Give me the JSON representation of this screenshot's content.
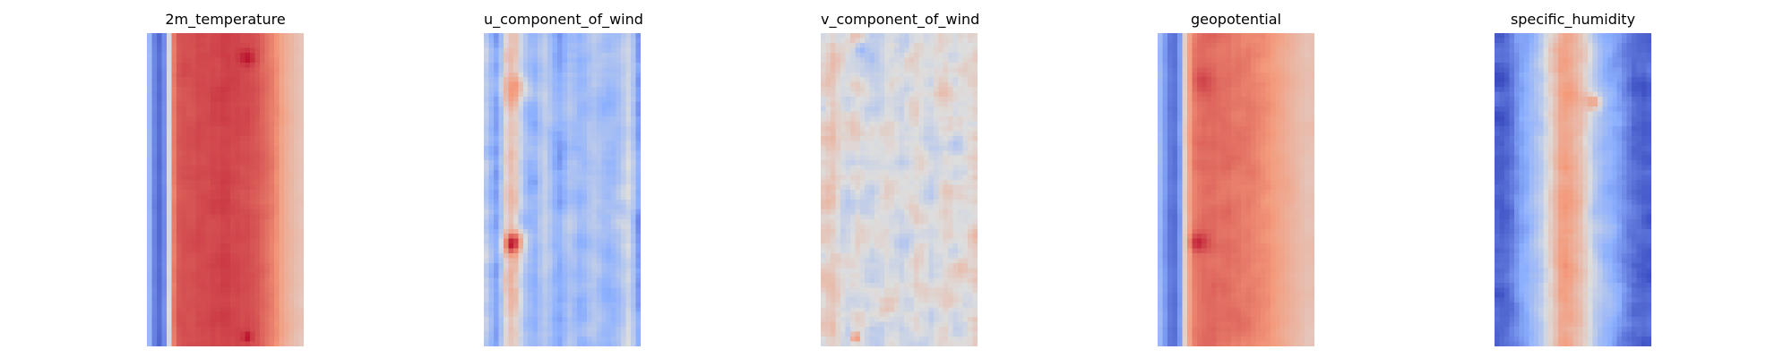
{
  "chart_data": [
    {
      "type": "heatmap",
      "title": "2m_temperature",
      "colormap": "coolwarm",
      "axis": "off",
      "grid": false,
      "pattern": {
        "base_columns": [
          0.3,
          0.14,
          0.08,
          0.16,
          0.48,
          0.8,
          0.86,
          0.87,
          0.87,
          0.87,
          0.88,
          0.88,
          0.88,
          0.89,
          0.89,
          0.9,
          0.9,
          0.89,
          0.89,
          0.88,
          0.88,
          0.87,
          0.86,
          0.84,
          0.82,
          0.8,
          0.77,
          0.72,
          0.68,
          0.65,
          0.62,
          0.6
        ],
        "noise": 0.03,
        "hotspots": [
          {
            "col": 0.64,
            "row": 0.08,
            "strength": 0.1,
            "radius": 0.05
          },
          {
            "col": 0.64,
            "row": 0.97,
            "strength": 0.1,
            "radius": 0.03
          }
        ],
        "seed": 11
      }
    },
    {
      "type": "heatmap",
      "title": "u_component_of_wind",
      "colormap": "coolwarm",
      "axis": "off",
      "grid": false,
      "pattern": {
        "base_columns": [
          0.4,
          0.3,
          0.22,
          0.35,
          0.55,
          0.62,
          0.58,
          0.45,
          0.35,
          0.3,
          0.28,
          0.35,
          0.4,
          0.35,
          0.28,
          0.25,
          0.3,
          0.35,
          0.32,
          0.28,
          0.3,
          0.35,
          0.38,
          0.35,
          0.32,
          0.3,
          0.32,
          0.35,
          0.4,
          0.45,
          0.35,
          0.2
        ],
        "noise": 0.14,
        "hotspots": [
          {
            "col": 0.19,
            "row": 0.67,
            "strength": 0.32,
            "radius": 0.07
          },
          {
            "col": 0.22,
            "row": 0.18,
            "strength": 0.18,
            "radius": 0.1
          },
          {
            "col": 0.55,
            "row": 0.62,
            "strength": 0.1,
            "radius": 0.08
          }
        ],
        "seed": 23
      }
    },
    {
      "type": "heatmap",
      "title": "v_component_of_wind",
      "colormap": "coolwarm",
      "axis": "off",
      "grid": false,
      "pattern": {
        "base_columns": [
          0.55,
          0.58,
          0.6,
          0.55,
          0.5,
          0.48,
          0.5,
          0.52,
          0.5,
          0.48,
          0.47,
          0.48,
          0.5,
          0.52,
          0.5,
          0.48,
          0.46,
          0.48,
          0.5,
          0.52,
          0.5,
          0.48,
          0.46,
          0.48,
          0.5,
          0.52,
          0.5,
          0.48,
          0.5,
          0.52,
          0.55,
          0.58
        ],
        "noise": 0.2,
        "hotspots": [
          {
            "col": 0.22,
            "row": 0.97,
            "strength": 0.35,
            "radius": 0.03
          },
          {
            "col": 0.25,
            "row": 0.05,
            "strength": -0.25,
            "radius": 0.05
          }
        ],
        "seed": 37
      }
    },
    {
      "type": "heatmap",
      "title": "geopotential",
      "colormap": "coolwarm",
      "axis": "off",
      "grid": false,
      "pattern": {
        "base_columns": [
          0.3,
          0.2,
          0.12,
          0.1,
          0.2,
          0.55,
          0.72,
          0.8,
          0.82,
          0.83,
          0.83,
          0.83,
          0.82,
          0.82,
          0.82,
          0.81,
          0.81,
          0.8,
          0.8,
          0.79,
          0.78,
          0.77,
          0.76,
          0.74,
          0.72,
          0.7,
          0.68,
          0.66,
          0.64,
          0.62,
          0.6,
          0.6
        ],
        "noise": 0.04,
        "hotspots": [
          {
            "col": 0.25,
            "row": 0.67,
            "strength": 0.14,
            "radius": 0.06
          },
          {
            "col": 0.28,
            "row": 0.15,
            "strength": 0.06,
            "radius": 0.08
          }
        ],
        "seed": 41
      }
    },
    {
      "type": "heatmap",
      "title": "specific_humidity",
      "colormap": "coolwarm",
      "axis": "off",
      "grid": false,
      "pattern": {
        "base_columns": [
          0.06,
          0.06,
          0.08,
          0.12,
          0.18,
          0.22,
          0.25,
          0.3,
          0.35,
          0.4,
          0.48,
          0.55,
          0.62,
          0.7,
          0.72,
          0.7,
          0.66,
          0.62,
          0.56,
          0.48,
          0.4,
          0.35,
          0.3,
          0.28,
          0.25,
          0.22,
          0.18,
          0.14,
          0.1,
          0.08,
          0.06,
          0.06
        ],
        "noise": 0.12,
        "hotspots": [
          {
            "col": 0.64,
            "row": 0.22,
            "strength": 0.25,
            "radius": 0.05
          }
        ],
        "seed": 53
      }
    }
  ]
}
